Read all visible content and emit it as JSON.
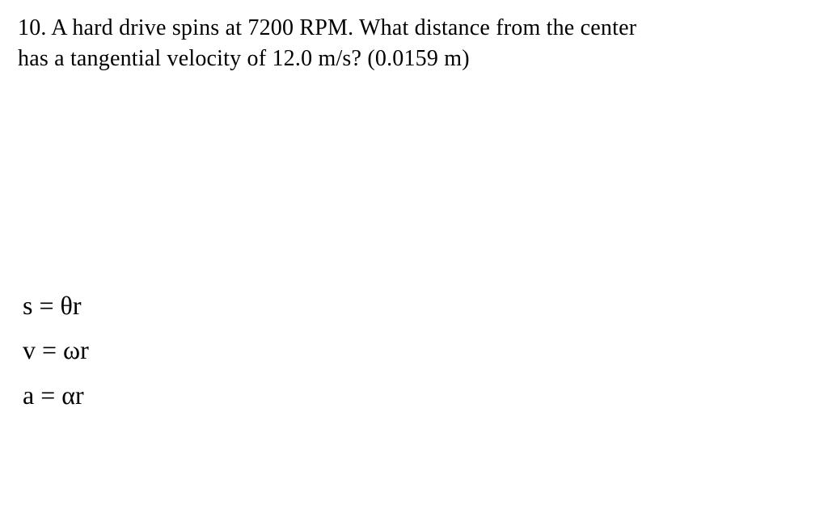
{
  "problem": {
    "line1": "10. A hard drive spins at 7200 RPM.  What distance from the center",
    "line2": "has a tangential velocity of 12.0 m/s? (0.0159 m)",
    "number": 10,
    "rpm": 7200,
    "velocity_mps": 12.0,
    "answer_m": 0.0159,
    "text_color": "#000000",
    "background_color": "#ffffff",
    "font_family": "Times New Roman",
    "problem_fontsize_pt": 21,
    "formula_fontsize_pt": 24
  },
  "formulas": {
    "eq1": "s = θr",
    "eq2": "v = ωr",
    "eq3": "a = αr"
  }
}
